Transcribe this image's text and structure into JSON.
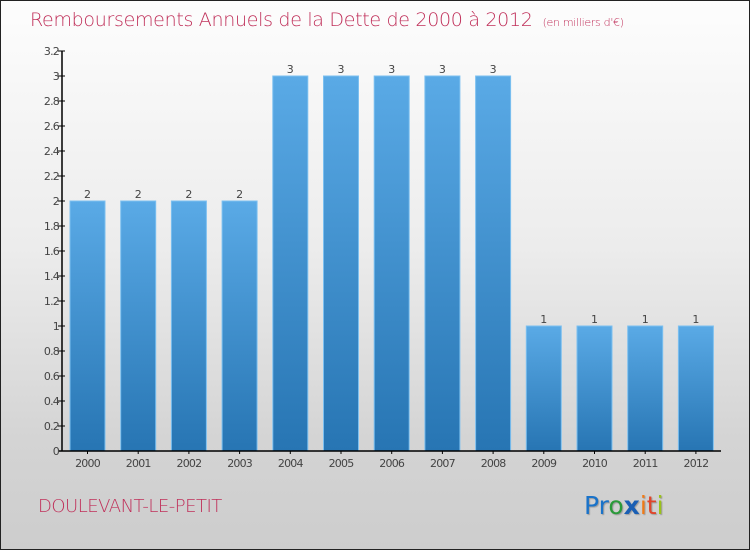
{
  "header": {
    "title": "Remboursements Annuels de la Dette de 2000 à 2012",
    "subtitle": "(en milliers d'€)"
  },
  "footer": {
    "commune": "DOULEVANT-LE-PETIT",
    "logo": [
      {
        "char": "P",
        "color": "#1a73c9"
      },
      {
        "char": "r",
        "color": "#1a73c9"
      },
      {
        "char": "o",
        "color": "#2a9a3a"
      },
      {
        "char": "x",
        "color": "#1a5fb4"
      },
      {
        "char": "i",
        "color": "#f07a16"
      },
      {
        "char": "t",
        "color": "#e0442a"
      },
      {
        "char": "i",
        "color": "#9ac21a"
      }
    ]
  },
  "chart_data": {
    "type": "bar",
    "title": "Remboursements Annuels de la Dette de 2000 à 2012",
    "subtitle": "(en milliers d'€)",
    "xlabel": "",
    "ylabel": "",
    "categories": [
      "2000",
      "2001",
      "2002",
      "2003",
      "2004",
      "2005",
      "2006",
      "2007",
      "2008",
      "2009",
      "2010",
      "2011",
      "2012"
    ],
    "values": [
      2,
      2,
      2,
      2,
      3,
      3,
      3,
      3,
      3,
      1,
      1,
      1,
      1
    ],
    "data_labels": [
      "2",
      "2",
      "2",
      "2",
      "3",
      "3",
      "3",
      "3",
      "3",
      "1",
      "1",
      "1",
      "1"
    ],
    "ylim": [
      0,
      3.2
    ],
    "yticks": [
      0,
      0.2,
      0.4,
      0.6,
      0.8,
      1,
      1.2,
      1.4,
      1.6,
      1.8,
      2,
      2.2,
      2.4,
      2.6,
      2.8,
      3,
      3.2
    ],
    "ytick_labels": [
      "0",
      "0.2",
      "0.4",
      "0.6",
      "0.8",
      "1",
      "1.2",
      "1.4",
      "1.6",
      "1.8",
      "2",
      "2.2",
      "2.4",
      "2.6",
      "2.8",
      "3",
      "3.2"
    ],
    "grid": false,
    "legend": "none",
    "bar_color_top": "#5aaae6",
    "bar_color_bottom": "#2775b3"
  }
}
